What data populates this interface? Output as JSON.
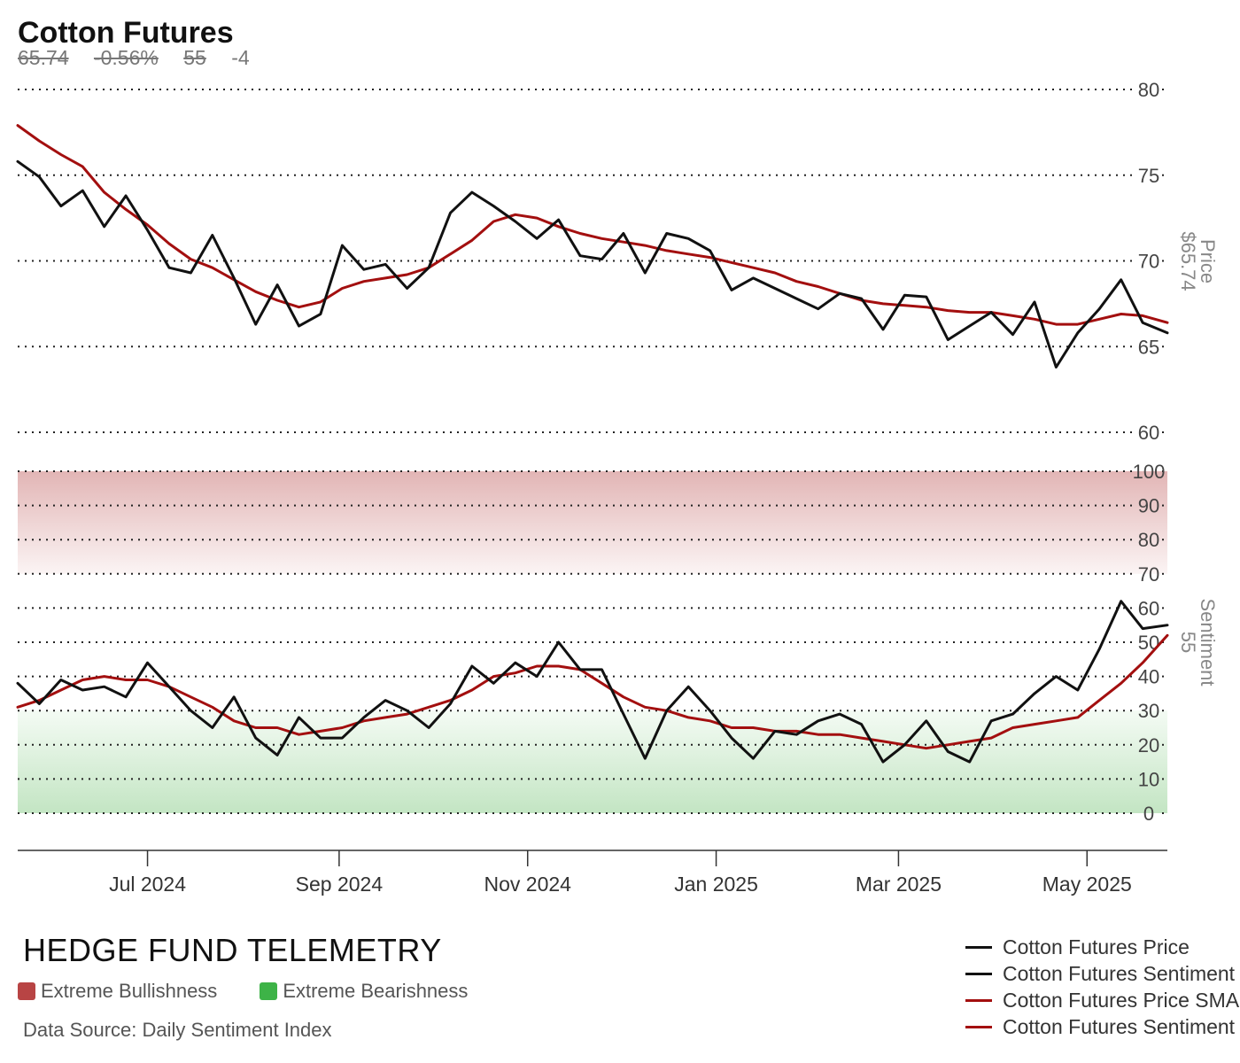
{
  "header": {
    "title": "Cotton Futures",
    "price": "65.74",
    "change_pct": "-0.56%",
    "sentiment": "55",
    "sentiment_change": "-4"
  },
  "footer": {
    "brand": "HEDGE FUND TELEMETRY",
    "zone_legend": [
      {
        "label": "Extreme Bullishness",
        "color": "#b84444"
      },
      {
        "label": "Extreme Bearishness",
        "color": "#3db347"
      }
    ],
    "source": "Data Source: Daily Sentiment Index"
  },
  "chart_data": {
    "type": "line",
    "x_tick_labels": [
      "Jul 2024",
      "Sep 2024",
      "Nov 2024",
      "Jan 2025",
      "Mar 2025",
      "May 2025"
    ],
    "x_range": [
      "2024-05-20",
      "2025-05-27"
    ],
    "legend": [
      {
        "name": "Cotton Futures Price",
        "color": "#111111"
      },
      {
        "name": "Cotton Futures Sentiment",
        "color": "#111111"
      },
      {
        "name": "Cotton Futures Price SMA",
        "color": "#a30f0f"
      },
      {
        "name": "Cotton Futures Sentiment SMA",
        "color": "#a30f0f"
      }
    ],
    "price_panel": {
      "axis_label": "Price",
      "axis_value": "$65.74",
      "ylim": [
        60,
        80
      ],
      "yticks": [
        60,
        65,
        70,
        75,
        80
      ],
      "grid": true,
      "x": [
        "2024-05-20",
        "2024-05-27",
        "2024-06-03",
        "2024-06-10",
        "2024-06-17",
        "2024-06-24",
        "2024-07-01",
        "2024-07-08",
        "2024-07-15",
        "2024-07-22",
        "2024-07-29",
        "2024-08-05",
        "2024-08-12",
        "2024-08-19",
        "2024-08-26",
        "2024-09-02",
        "2024-09-09",
        "2024-09-16",
        "2024-09-23",
        "2024-09-30",
        "2024-10-07",
        "2024-10-14",
        "2024-10-21",
        "2024-10-28",
        "2024-11-04",
        "2024-11-11",
        "2024-11-18",
        "2024-11-25",
        "2024-12-02",
        "2024-12-09",
        "2024-12-16",
        "2024-12-23",
        "2024-12-30",
        "2025-01-06",
        "2025-01-13",
        "2025-01-20",
        "2025-01-27",
        "2025-02-03",
        "2025-02-10",
        "2025-02-17",
        "2025-02-24",
        "2025-03-03",
        "2025-03-10",
        "2025-03-17",
        "2025-03-24",
        "2025-03-31",
        "2025-04-07",
        "2025-04-14",
        "2025-04-21",
        "2025-04-28",
        "2025-05-05",
        "2025-05-12",
        "2025-05-19",
        "2025-05-27"
      ],
      "price": [
        75.8,
        74.9,
        73.2,
        74.1,
        72.0,
        73.8,
        71.8,
        69.6,
        69.3,
        71.5,
        69.0,
        66.3,
        68.6,
        66.2,
        66.9,
        70.9,
        69.5,
        69.8,
        68.4,
        69.6,
        72.8,
        74.0,
        73.2,
        72.3,
        71.3,
        72.4,
        70.3,
        70.1,
        71.6,
        69.3,
        71.6,
        71.3,
        70.6,
        68.3,
        69.0,
        68.4,
        67.8,
        67.2,
        68.1,
        67.8,
        66.0,
        68.0,
        67.9,
        65.4,
        66.2,
        67.0,
        65.7,
        67.6,
        63.8,
        65.8,
        67.2,
        68.9,
        66.4,
        65.8
      ],
      "sma": [
        77.9,
        77.0,
        76.2,
        75.5,
        74.0,
        73.0,
        72.1,
        71.0,
        70.1,
        69.6,
        68.9,
        68.2,
        67.7,
        67.3,
        67.6,
        68.4,
        68.8,
        69.0,
        69.2,
        69.6,
        70.4,
        71.2,
        72.3,
        72.7,
        72.5,
        72.0,
        71.6,
        71.3,
        71.1,
        70.9,
        70.6,
        70.4,
        70.2,
        69.9,
        69.6,
        69.3,
        68.8,
        68.5,
        68.1,
        67.7,
        67.5,
        67.4,
        67.3,
        67.1,
        67.0,
        67.0,
        66.8,
        66.6,
        66.3,
        66.3,
        66.6,
        66.9,
        66.8,
        66.4
      ]
    },
    "sentiment_panel": {
      "axis_label": "Sentiment",
      "axis_value": "55",
      "ylim": [
        0,
        100
      ],
      "yticks": [
        0,
        10,
        20,
        30,
        40,
        50,
        60,
        70,
        80,
        90,
        100
      ],
      "grid": true,
      "bands": [
        {
          "from": 70,
          "to": 100,
          "label": "Extreme Bullishness"
        },
        {
          "from": 0,
          "to": 30,
          "label": "Extreme Bearishness"
        }
      ],
      "x": [
        "2024-05-20",
        "2024-05-27",
        "2024-06-03",
        "2024-06-10",
        "2024-06-17",
        "2024-06-24",
        "2024-07-01",
        "2024-07-08",
        "2024-07-15",
        "2024-07-22",
        "2024-07-29",
        "2024-08-05",
        "2024-08-12",
        "2024-08-19",
        "2024-08-26",
        "2024-09-02",
        "2024-09-09",
        "2024-09-16",
        "2024-09-23",
        "2024-09-30",
        "2024-10-07",
        "2024-10-14",
        "2024-10-21",
        "2024-10-28",
        "2024-11-04",
        "2024-11-11",
        "2024-11-18",
        "2024-11-25",
        "2024-12-02",
        "2024-12-09",
        "2024-12-16",
        "2024-12-23",
        "2024-12-30",
        "2025-01-06",
        "2025-01-13",
        "2025-01-20",
        "2025-01-27",
        "2025-02-03",
        "2025-02-10",
        "2025-02-17",
        "2025-02-24",
        "2025-03-03",
        "2025-03-10",
        "2025-03-17",
        "2025-03-24",
        "2025-03-31",
        "2025-04-07",
        "2025-04-14",
        "2025-04-21",
        "2025-04-28",
        "2025-05-05",
        "2025-05-12",
        "2025-05-19",
        "2025-05-27"
      ],
      "sentiment": [
        38,
        32,
        39,
        36,
        37,
        34,
        44,
        37,
        30,
        25,
        34,
        22,
        17,
        28,
        22,
        22,
        28,
        33,
        30,
        25,
        32,
        43,
        38,
        44,
        40,
        50,
        42,
        42,
        29,
        16,
        30,
        37,
        30,
        22,
        16,
        24,
        23,
        27,
        29,
        26,
        15,
        20,
        27,
        18,
        15,
        27,
        29,
        35,
        40,
        36,
        48,
        62,
        54,
        55
      ],
      "sma": [
        31,
        33,
        36,
        39,
        40,
        39,
        39,
        37,
        34,
        31,
        27,
        25,
        25,
        23,
        24,
        25,
        27,
        28,
        29,
        31,
        33,
        36,
        40,
        41,
        43,
        43,
        42,
        38,
        34,
        31,
        30,
        28,
        27,
        25,
        25,
        24,
        24,
        23,
        23,
        22,
        21,
        20,
        19,
        20,
        21,
        22,
        25,
        26,
        27,
        28,
        33,
        38,
        44,
        52
      ]
    }
  }
}
